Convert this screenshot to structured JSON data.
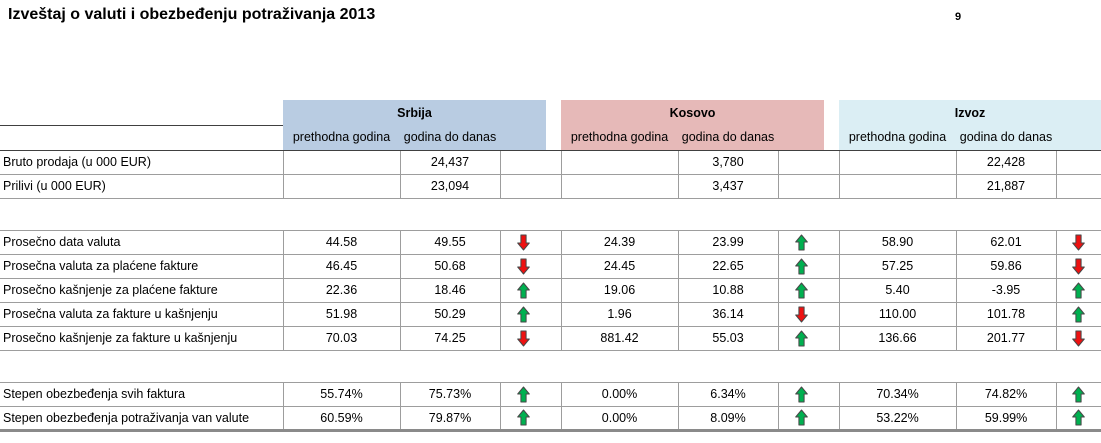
{
  "page": {
    "title": "Izveštaj o valuti i obezbeđenju potraživanja 2013",
    "page_number": "9"
  },
  "table": {
    "groups": [
      {
        "id": "srbija",
        "label": "Srbija",
        "color": "#b9cce2"
      },
      {
        "id": "kosovo",
        "label": "Kosovo",
        "color": "#e6b9b8"
      },
      {
        "id": "izvoz",
        "label": "Izvoz",
        "color": "#dbeef4"
      }
    ],
    "sub_headers": [
      "prethodna godina",
      "godina do danas"
    ],
    "arrow_colors": {
      "up": "#00b050",
      "down": "#ee1111"
    },
    "rows": [
      {
        "type": "data",
        "label": "Bruto prodaja (u 000 EUR)",
        "cells": [
          {
            "prev": "",
            "ytd": "24,437",
            "arrow": null
          },
          {
            "prev": "",
            "ytd": "3,780",
            "arrow": null
          },
          {
            "prev": "",
            "ytd": "22,428",
            "arrow": null
          }
        ]
      },
      {
        "type": "data",
        "label": "Prilivi (u 000 EUR)",
        "cells": [
          {
            "prev": "",
            "ytd": "23,094",
            "arrow": null
          },
          {
            "prev": "",
            "ytd": "3,437",
            "arrow": null
          },
          {
            "prev": "",
            "ytd": "21,887",
            "arrow": null
          }
        ]
      },
      {
        "type": "spacer"
      },
      {
        "type": "data",
        "label": "Prosečno data valuta",
        "cells": [
          {
            "prev": "44.58",
            "ytd": "49.55",
            "arrow": "down"
          },
          {
            "prev": "24.39",
            "ytd": "23.99",
            "arrow": "up"
          },
          {
            "prev": "58.90",
            "ytd": "62.01",
            "arrow": "down"
          }
        ]
      },
      {
        "type": "data",
        "label": "Prosečna valuta za plaćene fakture",
        "cells": [
          {
            "prev": "46.45",
            "ytd": "50.68",
            "arrow": "down"
          },
          {
            "prev": "24.45",
            "ytd": "22.65",
            "arrow": "up"
          },
          {
            "prev": "57.25",
            "ytd": "59.86",
            "arrow": "down"
          }
        ]
      },
      {
        "type": "data",
        "label": "Prosečno kašnjenje za plaćene fakture",
        "cells": [
          {
            "prev": "22.36",
            "ytd": "18.46",
            "arrow": "up"
          },
          {
            "prev": "19.06",
            "ytd": "10.88",
            "arrow": "up"
          },
          {
            "prev": "5.40",
            "ytd": "-3.95",
            "arrow": "up"
          }
        ]
      },
      {
        "type": "data",
        "label": "Prosečna valuta za fakture u kašnjenju",
        "cells": [
          {
            "prev": "51.98",
            "ytd": "50.29",
            "arrow": "up"
          },
          {
            "prev": "1.96",
            "ytd": "36.14",
            "arrow": "down"
          },
          {
            "prev": "110.00",
            "ytd": "101.78",
            "arrow": "up"
          }
        ]
      },
      {
        "type": "data",
        "label": "Prosečno kašnjenje za fakture u kašnjenju",
        "cells": [
          {
            "prev": "70.03",
            "ytd": "74.25",
            "arrow": "down"
          },
          {
            "prev": "881.42",
            "ytd": "55.03",
            "arrow": "up"
          },
          {
            "prev": "136.66",
            "ytd": "201.77",
            "arrow": "down"
          }
        ]
      },
      {
        "type": "spacer"
      },
      {
        "type": "data",
        "label": "Stepen obezbeđenja svih faktura",
        "cells": [
          {
            "prev": "55.74%",
            "ytd": "75.73%",
            "arrow": "up"
          },
          {
            "prev": "0.00%",
            "ytd": "6.34%",
            "arrow": "up"
          },
          {
            "prev": "70.34%",
            "ytd": "74.82%",
            "arrow": "up"
          }
        ]
      },
      {
        "type": "data",
        "label": "Stepen obezbeđenja potraživanja van valute",
        "cells": [
          {
            "prev": "60.59%",
            "ytd": "79.87%",
            "arrow": "up"
          },
          {
            "prev": "0.00%",
            "ytd": "8.09%",
            "arrow": "up"
          },
          {
            "prev": "53.22%",
            "ytd": "59.99%",
            "arrow": "up"
          }
        ]
      }
    ]
  }
}
